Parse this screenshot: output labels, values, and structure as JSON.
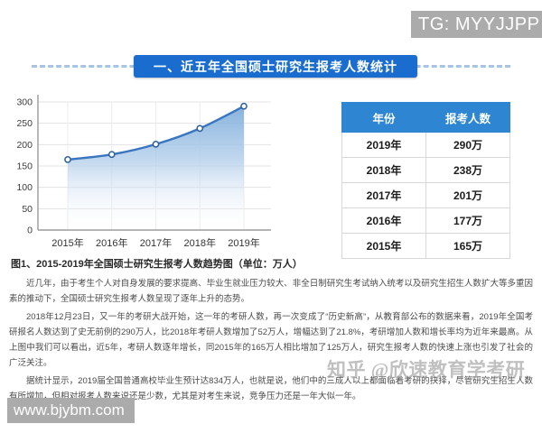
{
  "badges": {
    "tg": "TG: MYYJJPP",
    "site": "www.bjybm.com",
    "zhihu_watermark": "知乎 @欣速教育学考研"
  },
  "section_title": "一、近五年全国硕士研究生报考人数统计",
  "chart_data": {
    "type": "area",
    "title": "",
    "categories": [
      "2015年",
      "2016年",
      "2017年",
      "2018年",
      "2019年"
    ],
    "values": [
      165,
      177,
      201,
      238,
      290
    ],
    "series_name": "报考人数（万人）",
    "xlabel": "",
    "ylabel": "",
    "ylim": [
      0,
      300
    ],
    "yticks": [
      0,
      50,
      100,
      150,
      200,
      250,
      300
    ],
    "grid": true,
    "legend": "none",
    "line_color": "#3a76bf",
    "marker_stroke": "#2d5f9e",
    "fill_top_color": "#6ea3d6",
    "fill_mid_color": "#aecbe9"
  },
  "table": {
    "headers": [
      "年份",
      "报考人数"
    ],
    "rows": [
      [
        "2019年",
        "290万"
      ],
      [
        "2018年",
        "238万"
      ],
      [
        "2017年",
        "201万"
      ],
      [
        "2016年",
        "177万"
      ],
      [
        "2015年",
        "165万"
      ]
    ],
    "header_bg": "#2e86d2"
  },
  "figure_caption": "图1、2015-2019年全国硕士研究生报考人数趋势图（单位：万人）",
  "paragraphs": [
    "近几年，由于考生个人对自身发展的要求提高、毕业生就业压力较大、非全日制研究生考试纳入统考以及研究生招生人数扩大等多重因素的推动下，全国硕士研究生报考人数呈现了逐年上升的态势。",
    "2018年12月23日，又一年的考研大战开始，这一年的考研人数，再一次变成了“历史新高”，从教育部公布的数据来看，2019年全国考研报名人数达到了史无前例的290万人，比2018年考研人数增加了52万人，增幅达到了21.8%，考研增加人数和增长率均为近年来最高。从上图中我们可以看出，近5年，考研人数逐年增长，同2015年的165万人相比增加了125万人，研究生报考人数的快速上涨也引发了社会的广泛关注。",
    "据统计显示，2019届全国普通高校毕业生预计达834万人，也就是说，他们中的三成人以上都面临着考研的抉择，尽管研究生招生人数有所增加，但相对报考人数来说还是少数，尤其是对考生来说，竞争压力还是一年大似一年。"
  ],
  "colors": {
    "banner_bg": "#1a6dcf",
    "badge_bg": "#ababab",
    "dash_line": "#a6c4e4"
  }
}
